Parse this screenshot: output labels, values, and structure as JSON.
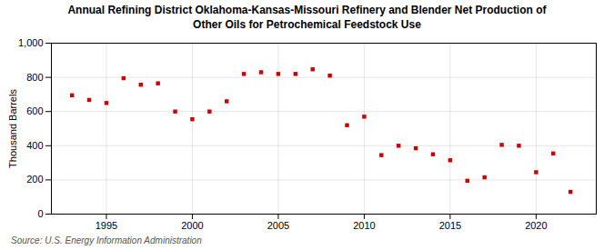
{
  "chart_data": {
    "type": "scatter",
    "title": "Annual Refining District Oklahoma-Kansas-Missouri Refinery and Blender Net Production of\nOther Oils for Petrochemical Feedstock Use",
    "ylabel": "Thousand Barrels",
    "source": "Source: U.S. Energy Information Administration",
    "x": [
      1993,
      1994,
      1995,
      1996,
      1997,
      1998,
      1999,
      2000,
      2001,
      2002,
      2003,
      2004,
      2005,
      2006,
      2007,
      2008,
      2009,
      2010,
      2011,
      2012,
      2013,
      2014,
      2015,
      2016,
      2017,
      2018,
      2019,
      2020,
      2021,
      2022
    ],
    "values": [
      695,
      668,
      650,
      795,
      757,
      765,
      600,
      555,
      600,
      660,
      820,
      830,
      820,
      820,
      847,
      810,
      520,
      570,
      345,
      400,
      385,
      350,
      315,
      195,
      215,
      405,
      400,
      245,
      355,
      130
    ],
    "color": "#cc0000",
    "marker": "square",
    "xlim": [
      1991.8,
      2023.5
    ],
    "xticks": [
      1995,
      2000,
      2005,
      2010,
      2015,
      2020
    ],
    "ylim": [
      0,
      1000
    ],
    "yticks": [
      0,
      200,
      400,
      600,
      800,
      {
        "value": 1000,
        "label": "1,000"
      }
    ],
    "grid": true
  }
}
